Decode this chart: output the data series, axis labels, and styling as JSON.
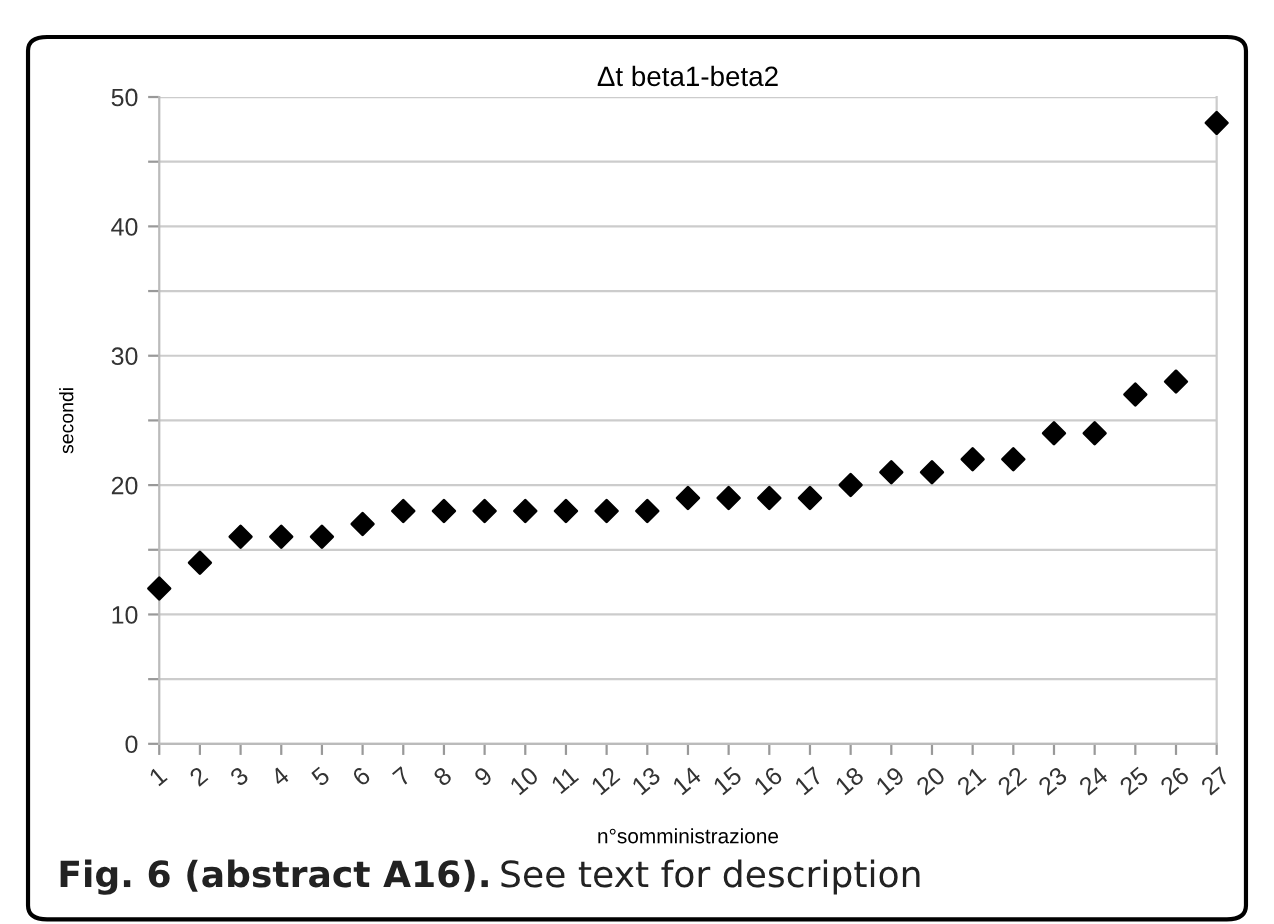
{
  "chart_data": {
    "type": "scatter",
    "title": "Δt beta1-beta2",
    "xlabel": "n°somministrazione",
    "ylabel": "secondi",
    "categories": [
      "1",
      "2",
      "3",
      "4",
      "5",
      "6",
      "7",
      "8",
      "9",
      "10",
      "11",
      "12",
      "13",
      "14",
      "15",
      "16",
      "17",
      "18",
      "19",
      "20",
      "21",
      "22",
      "23",
      "24",
      "25",
      "26",
      "27"
    ],
    "values": [
      12,
      14,
      16,
      16,
      16,
      17,
      18,
      18,
      18,
      18,
      18,
      18,
      18,
      19,
      19,
      19,
      19,
      20,
      21,
      21,
      22,
      22,
      24,
      24,
      27,
      28,
      48
    ],
    "color": "#000000",
    "marker": "diamond",
    "ylim": [
      0,
      50
    ],
    "yticks": [
      0,
      {
        "value": 5,
        "label": null
      },
      10,
      {
        "value": 15,
        "label": null
      },
      20,
      {
        "value": 25,
        "label": null
      },
      30,
      {
        "value": 35,
        "label": null
      },
      40,
      {
        "value": 45,
        "label": null
      },
      50
    ],
    "grid": "y",
    "legend": false,
    "annotations": [
      "Fig. 6 (abstract A16).",
      "See text for description"
    ]
  }
}
